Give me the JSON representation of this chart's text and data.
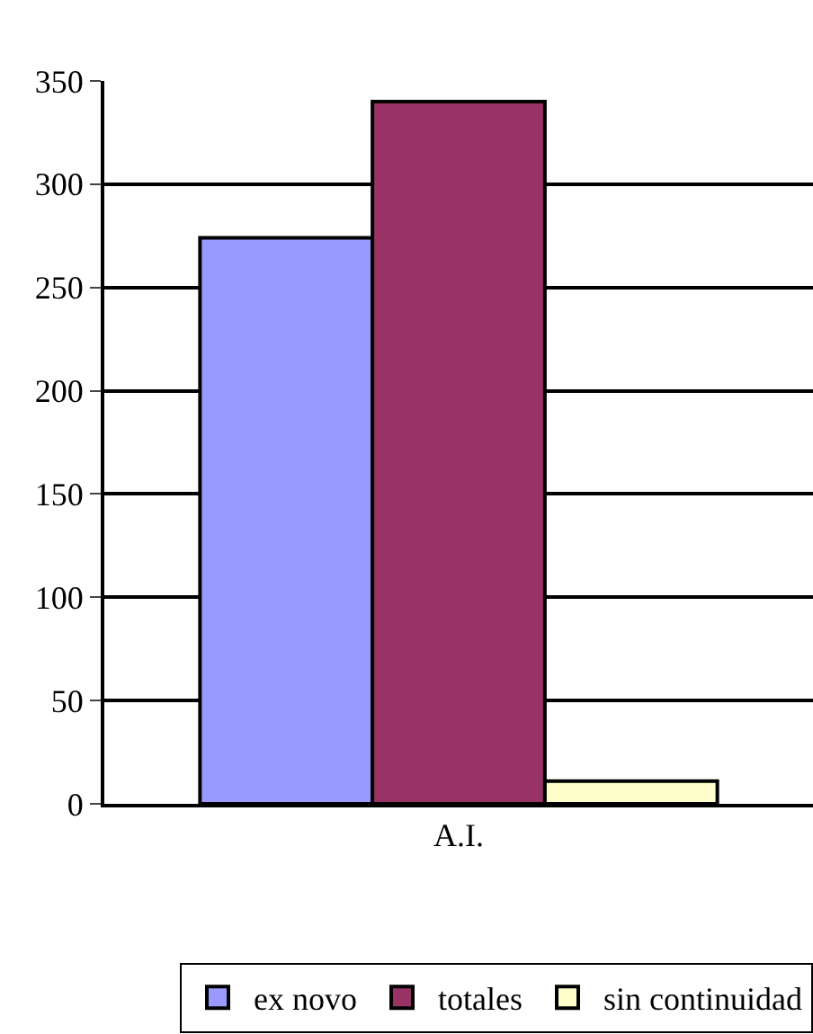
{
  "chart_data": {
    "type": "bar",
    "categories": [
      "A.I."
    ],
    "series": [
      {
        "name": "ex novo",
        "color": "#9999ff",
        "values": [
          274
        ]
      },
      {
        "name": "totales",
        "color": "#993366",
        "values": [
          340
        ]
      },
      {
        "name": "sin continuidad",
        "color": "#ffffcc",
        "values": [
          11
        ]
      }
    ],
    "ylim": [
      0,
      350
    ],
    "yticks": [
      0,
      50,
      100,
      150,
      200,
      250,
      300,
      350
    ],
    "grid": "y",
    "legend": "bottom"
  }
}
